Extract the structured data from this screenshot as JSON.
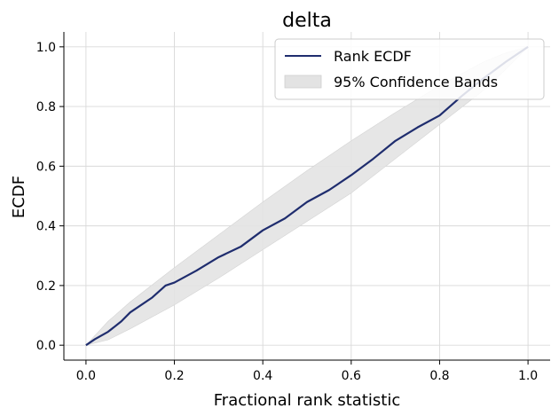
{
  "chart_data": {
    "type": "line",
    "title": "delta",
    "xlabel": "Fractional rank statistic",
    "ylabel": "ECDF",
    "xlim": [
      -0.05,
      1.05
    ],
    "ylim": [
      -0.05,
      1.05
    ],
    "xticks": [
      0.0,
      0.2,
      0.4,
      0.6,
      0.8,
      1.0
    ],
    "xtick_labels": [
      "0.0",
      "0.2",
      "0.4",
      "0.6",
      "0.8",
      "1.0"
    ],
    "yticks": [
      0.0,
      0.2,
      0.4,
      0.6,
      0.8,
      1.0
    ],
    "ytick_labels": [
      "0.0",
      "0.2",
      "0.4",
      "0.6",
      "0.8",
      "1.0"
    ],
    "grid": true,
    "legend_position": "top-right",
    "legend": [
      "Rank ECDF",
      "95% Confidence Bands"
    ],
    "series": [
      {
        "name": "Rank ECDF",
        "color": "#1f2d6e",
        "x": [
          0.0,
          0.02,
          0.05,
          0.08,
          0.1,
          0.15,
          0.18,
          0.2,
          0.25,
          0.3,
          0.35,
          0.4,
          0.45,
          0.5,
          0.55,
          0.6,
          0.65,
          0.7,
          0.75,
          0.8,
          0.85,
          0.9,
          0.95,
          1.0
        ],
        "y": [
          0.0,
          0.02,
          0.045,
          0.08,
          0.11,
          0.16,
          0.2,
          0.21,
          0.25,
          0.295,
          0.33,
          0.385,
          0.425,
          0.48,
          0.52,
          0.57,
          0.625,
          0.685,
          0.73,
          0.77,
          0.835,
          0.895,
          0.95,
          1.0
        ]
      }
    ],
    "band": {
      "name": "95% Confidence Bands",
      "color": "#e3e3e3",
      "x": [
        0.0,
        0.05,
        0.1,
        0.2,
        0.3,
        0.4,
        0.5,
        0.6,
        0.7,
        0.8,
        0.9,
        0.95,
        1.0
      ],
      "lower": [
        0.0,
        0.018,
        0.055,
        0.135,
        0.225,
        0.32,
        0.415,
        0.51,
        0.625,
        0.74,
        0.855,
        0.925,
        1.0
      ],
      "upper": [
        0.0,
        0.08,
        0.145,
        0.26,
        0.37,
        0.48,
        0.585,
        0.685,
        0.78,
        0.87,
        0.95,
        0.98,
        1.0
      ]
    }
  }
}
